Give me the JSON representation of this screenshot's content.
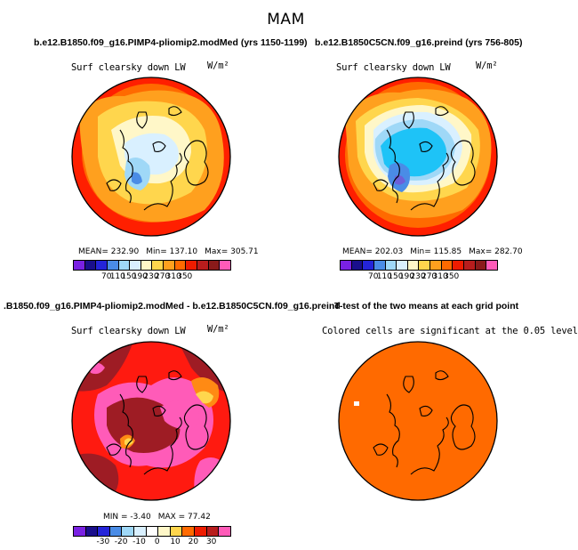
{
  "title": "MAM",
  "colorbar_colors": [
    "#7a21e3",
    "#1a0f8c",
    "#2424d9",
    "#4a8ce6",
    "#9fd8f7",
    "#d9f0ff",
    "#fff7c8",
    "#ffd64d",
    "#ffa01e",
    "#ff6a00",
    "#ee1c00",
    "#b81d1d",
    "#8a1a1a",
    "#ff5bb8"
  ],
  "panels": [
    {
      "title": "b.e12.B1850.f09_g16.PIMP4-pliomip2.modMed (yrs 1150-1199)",
      "variable": "Surf clearsky down LW",
      "units": "W/m²",
      "stats": {
        "mean": "MEAN= 232.90",
        "min": "Min= 137.10",
        "max": "Max= 305.71"
      },
      "ticks": [
        "70",
        "110",
        "150",
        "190",
        "230",
        "270",
        "310",
        "350"
      ]
    },
    {
      "title": "b.e12.B1850C5CN.f09_g16.preind (yrs 756-805)",
      "variable": "Surf clearsky down LW",
      "units": "W/m²",
      "stats": {
        "mean": "MEAN= 202.03",
        "min": "Min= 115.85",
        "max": "Max= 282.70"
      },
      "ticks": [
        "70",
        "110",
        "150",
        "190",
        "230",
        "270",
        "310",
        "350"
      ]
    },
    {
      "title": ".B1850.f09_g16.PIMP4-pliomip2.modMed - b.e12.B1850C5CN.f09_g16.preind",
      "variable": "Surf clearsky down LW",
      "units": "W/m²",
      "stats": {
        "min": "MIN =  -3.40",
        "max": "MAX =  77.42"
      },
      "ticks": [
        "-30",
        "-20",
        "-10",
        "0",
        "10",
        "20",
        "30"
      ]
    },
    {
      "title": "T-test of the two means at each grid point",
      "subtitle": "Colored cells are significant at the 0.05 level"
    }
  ],
  "colors": {
    "p1_ring": [
      "#ff1f00",
      "#ff6a00",
      "#ffa01e",
      "#ffd64d",
      "#fff7c8",
      "#d9f0ff",
      "#9fd8f7",
      "#4a8ce6"
    ],
    "p2_ring": [
      "#ff1f00",
      "#ff6a00",
      "#ffa01e",
      "#ffd64d",
      "#fff7c8",
      "#d9f0ff",
      "#9fd8f7",
      "#1ec3f7",
      "#4a8ce6",
      "#6d5fd9"
    ],
    "diff_base": "#ff1a10",
    "diff_pink": "#ff5bb8",
    "diff_dark": "#9e1c24",
    "diff_orange": "#ff8a14",
    "diff_yellow": "#ffd64d",
    "ttest": "#ff6a00"
  }
}
